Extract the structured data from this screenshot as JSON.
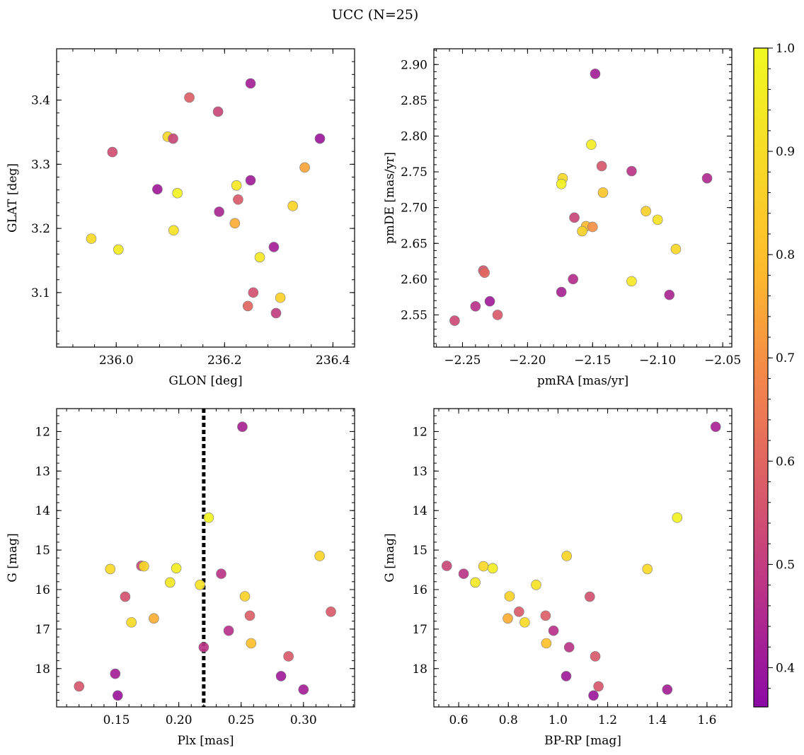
{
  "title": "UCC (N=25)",
  "colorbar": {
    "min": 0.362,
    "max": 1.0,
    "ticks": [
      0.4,
      0.5,
      0.6,
      0.7,
      0.8,
      0.9,
      1.0
    ],
    "tick_labels": [
      "0.4",
      "0.5",
      "0.6",
      "0.7",
      "0.8",
      "0.9",
      "1.0"
    ],
    "colormap": "plasma"
  },
  "chart_data": [
    {
      "type": "scatter",
      "id": "glon-glat",
      "xlabel": "GLON [deg]",
      "ylabel": "GLAT [deg]",
      "xlim": [
        235.89,
        236.44
      ],
      "ylim": [
        3.015,
        3.48
      ],
      "xticks": [
        236.0,
        236.2,
        236.4
      ],
      "xtick_labels": [
        "236.0",
        "236.2",
        "236.4"
      ],
      "yticks": [
        3.1,
        3.2,
        3.3,
        3.4
      ],
      "ytick_labels": [
        "3.1",
        "3.2",
        "3.3",
        "3.4"
      ],
      "x_minor_step": 0.04,
      "y_minor_step": 0.02,
      "y_inverted": false,
      "points": [
        {
          "x": 236.248,
          "y": 3.426,
          "c": 0.42
        },
        {
          "x": 236.135,
          "y": 3.404,
          "c": 0.58
        },
        {
          "x": 236.188,
          "y": 3.382,
          "c": 0.52
        },
        {
          "x": 236.095,
          "y": 3.343,
          "c": 0.88
        },
        {
          "x": 236.105,
          "y": 3.34,
          "c": 0.52
        },
        {
          "x": 236.376,
          "y": 3.34,
          "c": 0.4
        },
        {
          "x": 235.993,
          "y": 3.319,
          "c": 0.54
        },
        {
          "x": 236.348,
          "y": 3.295,
          "c": 0.74
        },
        {
          "x": 236.248,
          "y": 3.275,
          "c": 0.41
        },
        {
          "x": 236.222,
          "y": 3.267,
          "c": 0.94
        },
        {
          "x": 236.076,
          "y": 3.261,
          "c": 0.41
        },
        {
          "x": 236.113,
          "y": 3.255,
          "c": 0.98
        },
        {
          "x": 236.225,
          "y": 3.245,
          "c": 0.57
        },
        {
          "x": 236.326,
          "y": 3.235,
          "c": 0.87
        },
        {
          "x": 236.19,
          "y": 3.226,
          "c": 0.44
        },
        {
          "x": 236.219,
          "y": 3.208,
          "c": 0.76
        },
        {
          "x": 236.106,
          "y": 3.197,
          "c": 0.92
        },
        {
          "x": 235.954,
          "y": 3.184,
          "c": 0.89
        },
        {
          "x": 236.291,
          "y": 3.171,
          "c": 0.42
        },
        {
          "x": 236.004,
          "y": 3.167,
          "c": 0.95
        },
        {
          "x": 236.265,
          "y": 3.155,
          "c": 0.94
        },
        {
          "x": 236.253,
          "y": 3.1,
          "c": 0.55
        },
        {
          "x": 236.303,
          "y": 3.092,
          "c": 0.86
        },
        {
          "x": 236.243,
          "y": 3.079,
          "c": 0.6
        },
        {
          "x": 236.295,
          "y": 3.068,
          "c": 0.5
        }
      ]
    },
    {
      "type": "scatter",
      "id": "pmra-pmde",
      "xlabel": "pmRA [mas/yr]",
      "ylabel": "pmDE [mas/yr]",
      "xlim": [
        -2.272,
        -2.043
      ],
      "ylim": [
        2.505,
        2.922
      ],
      "xticks": [
        -2.25,
        -2.2,
        -2.15,
        -2.1,
        -2.05
      ],
      "xtick_labels": [
        "−2.25",
        "−2.20",
        "−2.15",
        "−2.10",
        "−2.05"
      ],
      "yticks": [
        2.55,
        2.6,
        2.65,
        2.7,
        2.75,
        2.8,
        2.85,
        2.9
      ],
      "ytick_labels": [
        "2.55",
        "2.60",
        "2.65",
        "2.70",
        "2.75",
        "2.80",
        "2.85",
        "2.90"
      ],
      "x_minor_step": 0.01,
      "y_minor_step": 0.01,
      "y_inverted": false,
      "points": [
        {
          "x": -2.148,
          "y": 2.887,
          "c": 0.42
        },
        {
          "x": -2.151,
          "y": 2.788,
          "c": 0.96
        },
        {
          "x": -2.143,
          "y": 2.758,
          "c": 0.56
        },
        {
          "x": -2.12,
          "y": 2.751,
          "c": 0.48
        },
        {
          "x": -2.062,
          "y": 2.741,
          "c": 0.45
        },
        {
          "x": -2.173,
          "y": 2.741,
          "c": 0.89
        },
        {
          "x": -2.174,
          "y": 2.733,
          "c": 0.97
        },
        {
          "x": -2.142,
          "y": 2.721,
          "c": 0.82
        },
        {
          "x": -2.109,
          "y": 2.695,
          "c": 0.85
        },
        {
          "x": -2.1,
          "y": 2.683,
          "c": 0.92
        },
        {
          "x": -2.164,
          "y": 2.686,
          "c": 0.52
        },
        {
          "x": -2.155,
          "y": 2.674,
          "c": 0.78
        },
        {
          "x": -2.15,
          "y": 2.673,
          "c": 0.7
        },
        {
          "x": -2.158,
          "y": 2.667,
          "c": 0.86
        },
        {
          "x": -2.086,
          "y": 2.642,
          "c": 0.88
        },
        {
          "x": -2.234,
          "y": 2.612,
          "c": 0.56
        },
        {
          "x": -2.233,
          "y": 2.609,
          "c": 0.6
        },
        {
          "x": -2.165,
          "y": 2.6,
          "c": 0.46
        },
        {
          "x": -2.12,
          "y": 2.597,
          "c": 0.94
        },
        {
          "x": -2.174,
          "y": 2.582,
          "c": 0.43
        },
        {
          "x": -2.091,
          "y": 2.578,
          "c": 0.44
        },
        {
          "x": -2.229,
          "y": 2.569,
          "c": 0.41
        },
        {
          "x": -2.24,
          "y": 2.562,
          "c": 0.47
        },
        {
          "x": -2.223,
          "y": 2.55,
          "c": 0.57
        },
        {
          "x": -2.256,
          "y": 2.542,
          "c": 0.53
        }
      ]
    },
    {
      "type": "scatter",
      "id": "plx-g",
      "xlabel": "Plx [mas]",
      "ylabel": "G [mag]",
      "xlim": [
        0.102,
        0.341
      ],
      "ylim": [
        11.42,
        18.97
      ],
      "xticks": [
        0.15,
        0.2,
        0.25,
        0.3
      ],
      "xtick_labels": [
        "0.15",
        "0.20",
        "0.25",
        "0.30"
      ],
      "yticks": [
        12,
        13,
        14,
        15,
        16,
        17,
        18
      ],
      "ytick_labels": [
        "12",
        "13",
        "14",
        "15",
        "16",
        "17",
        "18"
      ],
      "x_minor_step": 0.01,
      "y_minor_step": 0.2,
      "y_inverted": true,
      "vline": {
        "x": 0.22,
        "style": "dotted",
        "color": "#000000"
      },
      "points": [
        {
          "x": 0.251,
          "y": 11.88,
          "c": 0.43
        },
        {
          "x": 0.224,
          "y": 14.18,
          "c": 0.98
        },
        {
          "x": 0.313,
          "y": 15.15,
          "c": 0.87
        },
        {
          "x": 0.145,
          "y": 15.48,
          "c": 0.89
        },
        {
          "x": 0.17,
          "y": 15.4,
          "c": 0.52
        },
        {
          "x": 0.172,
          "y": 15.41,
          "c": 0.88
        },
        {
          "x": 0.198,
          "y": 15.46,
          "c": 0.96
        },
        {
          "x": 0.234,
          "y": 15.6,
          "c": 0.48
        },
        {
          "x": 0.193,
          "y": 15.82,
          "c": 0.94
        },
        {
          "x": 0.217,
          "y": 15.88,
          "c": 0.92
        },
        {
          "x": 0.157,
          "y": 16.18,
          "c": 0.55
        },
        {
          "x": 0.253,
          "y": 16.17,
          "c": 0.86
        },
        {
          "x": 0.322,
          "y": 16.56,
          "c": 0.57
        },
        {
          "x": 0.257,
          "y": 16.66,
          "c": 0.58
        },
        {
          "x": 0.18,
          "y": 16.73,
          "c": 0.76
        },
        {
          "x": 0.162,
          "y": 16.83,
          "c": 0.89
        },
        {
          "x": 0.24,
          "y": 17.04,
          "c": 0.47
        },
        {
          "x": 0.258,
          "y": 17.36,
          "c": 0.8
        },
        {
          "x": 0.22,
          "y": 17.46,
          "c": 0.48
        },
        {
          "x": 0.288,
          "y": 17.69,
          "c": 0.57
        },
        {
          "x": 0.149,
          "y": 18.13,
          "c": 0.42
        },
        {
          "x": 0.282,
          "y": 18.19,
          "c": 0.41
        },
        {
          "x": 0.12,
          "y": 18.45,
          "c": 0.56
        },
        {
          "x": 0.3,
          "y": 18.53,
          "c": 0.42
        },
        {
          "x": 0.151,
          "y": 18.68,
          "c": 0.4
        }
      ]
    },
    {
      "type": "scatter",
      "id": "bprp-g",
      "xlabel": "BP-RP [mag]",
      "ylabel": "G [mag]",
      "xlim": [
        0.5,
        1.7
      ],
      "ylim": [
        11.42,
        18.97
      ],
      "xticks": [
        0.6,
        0.8,
        1.0,
        1.2,
        1.4,
        1.6
      ],
      "xtick_labels": [
        "0.6",
        "0.8",
        "1.0",
        "1.2",
        "1.4",
        "1.6"
      ],
      "yticks": [
        12,
        13,
        14,
        15,
        16,
        17,
        18
      ],
      "ytick_labels": [
        "12",
        "13",
        "14",
        "15",
        "16",
        "17",
        "18"
      ],
      "x_minor_step": 0.04,
      "y_minor_step": 0.2,
      "y_inverted": true,
      "points": [
        {
          "x": 1.635,
          "y": 11.88,
          "c": 0.43
        },
        {
          "x": 1.48,
          "y": 14.18,
          "c": 0.98
        },
        {
          "x": 1.035,
          "y": 15.15,
          "c": 0.87
        },
        {
          "x": 1.36,
          "y": 15.48,
          "c": 0.89
        },
        {
          "x": 0.552,
          "y": 15.4,
          "c": 0.52
        },
        {
          "x": 0.7,
          "y": 15.41,
          "c": 0.88
        },
        {
          "x": 0.737,
          "y": 15.46,
          "c": 0.96
        },
        {
          "x": 0.62,
          "y": 15.6,
          "c": 0.48
        },
        {
          "x": 0.667,
          "y": 15.82,
          "c": 0.94
        },
        {
          "x": 0.912,
          "y": 15.88,
          "c": 0.92
        },
        {
          "x": 1.128,
          "y": 16.18,
          "c": 0.55
        },
        {
          "x": 0.805,
          "y": 16.17,
          "c": 0.86
        },
        {
          "x": 0.843,
          "y": 16.56,
          "c": 0.57
        },
        {
          "x": 0.95,
          "y": 16.66,
          "c": 0.58
        },
        {
          "x": 0.798,
          "y": 16.73,
          "c": 0.76
        },
        {
          "x": 0.866,
          "y": 16.83,
          "c": 0.89
        },
        {
          "x": 0.982,
          "y": 17.04,
          "c": 0.47
        },
        {
          "x": 0.953,
          "y": 17.36,
          "c": 0.8
        },
        {
          "x": 1.045,
          "y": 17.46,
          "c": 0.48
        },
        {
          "x": 1.15,
          "y": 17.69,
          "c": 0.57
        },
        {
          "x": 1.033,
          "y": 18.19,
          "c": 0.41
        },
        {
          "x": 1.163,
          "y": 18.45,
          "c": 0.56
        },
        {
          "x": 1.44,
          "y": 18.53,
          "c": 0.42
        },
        {
          "x": 1.143,
          "y": 18.68,
          "c": 0.4
        }
      ]
    }
  ]
}
